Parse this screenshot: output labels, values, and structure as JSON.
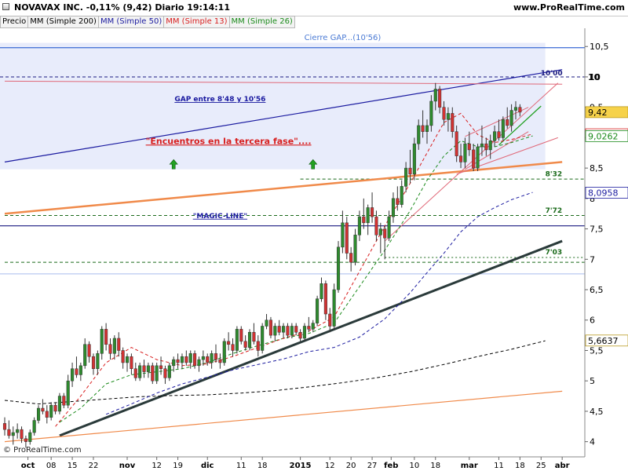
{
  "header": {
    "title": "NOVAVAX INC.   -0,11% (9,42)   Diario   19:14:11",
    "site": "www.ProRealTime.com"
  },
  "legend": [
    {
      "label": "Precio",
      "color": "#000000"
    },
    {
      "label": "MM (Simple 200)",
      "color": "#000000"
    },
    {
      "label": "MM (Simple 50)",
      "color": "#1c1ca0"
    },
    {
      "label": "MM (Simple 13)",
      "color": "#d81e1e"
    },
    {
      "label": "MM (Simple 26)",
      "color": "#1a8a1a"
    }
  ],
  "footer": {
    "copyright": "© ProRealTime.com"
  },
  "colors": {
    "up": "#2e8b2e",
    "down": "#d23232",
    "gap_zone": "#e8ecfb",
    "sma200": "#000000",
    "sma50": "#1c1ca0",
    "sma13": "#d81e1e",
    "sma26": "#1a8a1a"
  },
  "chart_data": {
    "type": "candlestick",
    "ylim": [
      3.75,
      10.8
    ],
    "yticks": [
      4,
      4.5,
      5,
      5.5,
      6,
      6.5,
      7,
      7.5,
      8,
      8.5,
      9,
      9.5,
      10,
      10.5
    ],
    "ytick_labels": [
      "4",
      "4,5",
      "5",
      "5,5",
      "6",
      "6,5",
      "7",
      "7,5",
      "8",
      "8,5",
      "9",
      "9,5",
      "10",
      "10,5"
    ],
    "x_range": [
      0,
      130
    ],
    "xticks": [
      {
        "i": 5.5,
        "label": "oct",
        "bold": true
      },
      {
        "i": 11,
        "label": "08"
      },
      {
        "i": 16,
        "label": "15"
      },
      {
        "i": 21,
        "label": "22"
      },
      {
        "i": 29,
        "label": "nov",
        "bold": true
      },
      {
        "i": 36,
        "label": "12"
      },
      {
        "i": 41,
        "label": "19"
      },
      {
        "i": 48,
        "label": "dic",
        "bold": true
      },
      {
        "i": 56,
        "label": "11"
      },
      {
        "i": 61,
        "label": "18"
      },
      {
        "i": 70,
        "label": "2015",
        "bold": true
      },
      {
        "i": 77,
        "label": "12"
      },
      {
        "i": 82,
        "label": "20"
      },
      {
        "i": 87,
        "label": "27"
      },
      {
        "i": 91.5,
        "label": "feb",
        "bold": true
      },
      {
        "i": 97,
        "label": "10"
      },
      {
        "i": 102,
        "label": "18"
      },
      {
        "i": 110,
        "label": "mar",
        "bold": true
      },
      {
        "i": 117,
        "label": "11"
      },
      {
        "i": 122,
        "label": "18"
      },
      {
        "i": 127,
        "label": "25"
      },
      {
        "i": 132,
        "label": "abr",
        "bold": true
      }
    ],
    "candles": [
      [
        4.3,
        4.4,
        4.1,
        4.2
      ],
      [
        4.2,
        4.35,
        4.05,
        4.1
      ],
      [
        4.1,
        4.25,
        3.95,
        4.15
      ],
      [
        4.15,
        4.3,
        4.05,
        4.2
      ],
      [
        4.2,
        4.25,
        3.98,
        4.05
      ],
      [
        4.05,
        4.1,
        3.9,
        4.0
      ],
      [
        4.0,
        4.2,
        3.95,
        4.15
      ],
      [
        4.15,
        4.4,
        4.1,
        4.35
      ],
      [
        4.35,
        4.6,
        4.3,
        4.55
      ],
      [
        4.55,
        4.7,
        4.45,
        4.5
      ],
      [
        4.5,
        4.6,
        4.3,
        4.4
      ],
      [
        4.4,
        4.65,
        4.35,
        4.6
      ],
      [
        4.6,
        4.65,
        4.45,
        4.5
      ],
      [
        4.5,
        4.8,
        4.45,
        4.75
      ],
      [
        4.75,
        4.8,
        4.55,
        4.6
      ],
      [
        4.6,
        5.1,
        4.55,
        5.0
      ],
      [
        5.0,
        5.3,
        4.9,
        5.2
      ],
      [
        5.2,
        5.4,
        5.05,
        5.1
      ],
      [
        5.1,
        5.3,
        5.0,
        5.25
      ],
      [
        5.25,
        5.7,
        5.2,
        5.6
      ],
      [
        5.6,
        5.65,
        5.3,
        5.4
      ],
      [
        5.4,
        5.45,
        5.1,
        5.2
      ],
      [
        5.2,
        5.5,
        5.1,
        5.45
      ],
      [
        5.45,
        5.9,
        5.35,
        5.85
      ],
      [
        5.85,
        5.95,
        5.5,
        5.6
      ],
      [
        5.6,
        5.7,
        5.35,
        5.45
      ],
      [
        5.45,
        5.75,
        5.35,
        5.7
      ],
      [
        5.7,
        5.8,
        5.4,
        5.5
      ],
      [
        5.5,
        5.55,
        5.2,
        5.3
      ],
      [
        5.3,
        5.45,
        5.15,
        5.4
      ],
      [
        5.4,
        5.45,
        5.1,
        5.2
      ],
      [
        5.2,
        5.3,
        5.0,
        5.05
      ],
      [
        5.05,
        5.3,
        5.0,
        5.25
      ],
      [
        5.25,
        5.35,
        5.05,
        5.15
      ],
      [
        5.15,
        5.3,
        5.05,
        5.25
      ],
      [
        5.25,
        5.3,
        4.95,
        5.0
      ],
      [
        5.0,
        5.3,
        4.95,
        5.25
      ],
      [
        5.25,
        5.4,
        5.1,
        5.2
      ],
      [
        5.2,
        5.25,
        4.95,
        5.05
      ],
      [
        5.05,
        5.3,
        5.0,
        5.25
      ],
      [
        5.25,
        5.4,
        5.15,
        5.35
      ],
      [
        5.35,
        5.45,
        5.2,
        5.3
      ],
      [
        5.3,
        5.45,
        5.2,
        5.4
      ],
      [
        5.4,
        5.5,
        5.25,
        5.3
      ],
      [
        5.3,
        5.5,
        5.2,
        5.45
      ],
      [
        5.45,
        5.5,
        5.2,
        5.25
      ],
      [
        5.25,
        5.4,
        5.15,
        5.35
      ],
      [
        5.35,
        5.5,
        5.25,
        5.4
      ],
      [
        5.4,
        5.45,
        5.25,
        5.3
      ],
      [
        5.3,
        5.5,
        5.2,
        5.45
      ],
      [
        5.45,
        5.6,
        5.3,
        5.35
      ],
      [
        5.35,
        5.45,
        5.2,
        5.3
      ],
      [
        5.3,
        5.7,
        5.25,
        5.65
      ],
      [
        5.65,
        5.8,
        5.5,
        5.6
      ],
      [
        5.6,
        5.7,
        5.4,
        5.5
      ],
      [
        5.5,
        5.9,
        5.45,
        5.85
      ],
      [
        5.85,
        5.9,
        5.6,
        5.65
      ],
      [
        5.65,
        5.75,
        5.5,
        5.55
      ],
      [
        5.55,
        5.85,
        5.5,
        5.8
      ],
      [
        5.8,
        5.95,
        5.6,
        5.65
      ],
      [
        5.65,
        5.75,
        5.4,
        5.5
      ],
      [
        5.5,
        5.95,
        5.45,
        5.9
      ],
      [
        5.9,
        6.1,
        5.85,
        6.0
      ],
      [
        6.0,
        6.05,
        5.7,
        5.75
      ],
      [
        5.75,
        5.95,
        5.65,
        5.9
      ],
      [
        5.9,
        6.0,
        5.75,
        5.8
      ],
      [
        5.8,
        5.95,
        5.7,
        5.9
      ],
      [
        5.9,
        5.95,
        5.7,
        5.75
      ],
      [
        5.75,
        5.95,
        5.7,
        5.9
      ],
      [
        5.9,
        5.95,
        5.75,
        5.8
      ],
      [
        5.8,
        5.85,
        5.65,
        5.7
      ],
      [
        5.7,
        5.95,
        5.65,
        5.9
      ],
      [
        5.9,
        6.05,
        5.8,
        5.85
      ],
      [
        5.85,
        6.0,
        5.8,
        5.95
      ],
      [
        5.95,
        6.4,
        5.9,
        6.35
      ],
      [
        6.35,
        6.7,
        6.3,
        6.6
      ],
      [
        6.6,
        6.65,
        6.0,
        6.1
      ],
      [
        6.1,
        6.2,
        5.8,
        5.9
      ],
      [
        5.9,
        6.6,
        5.85,
        6.5
      ],
      [
        6.5,
        7.3,
        6.45,
        7.2
      ],
      [
        7.2,
        7.8,
        7.1,
        7.6
      ],
      [
        7.6,
        7.7,
        7.0,
        7.1
      ],
      [
        7.1,
        7.2,
        6.8,
        6.95
      ],
      [
        6.95,
        7.5,
        6.9,
        7.4
      ],
      [
        7.4,
        7.8,
        7.3,
        7.7
      ],
      [
        7.7,
        8.0,
        7.5,
        7.6
      ],
      [
        7.6,
        7.9,
        7.4,
        7.85
      ],
      [
        7.85,
        8.1,
        7.6,
        7.7
      ],
      [
        7.7,
        7.8,
        7.3,
        7.4
      ],
      [
        7.4,
        7.6,
        7.1,
        7.5
      ],
      [
        7.5,
        7.55,
        7.0,
        7.35
      ],
      [
        7.35,
        7.8,
        7.3,
        7.7
      ],
      [
        7.7,
        8.1,
        7.6,
        8.0
      ],
      [
        8.0,
        8.2,
        7.8,
        7.9
      ],
      [
        7.9,
        8.3,
        7.85,
        8.2
      ],
      [
        8.2,
        8.6,
        8.1,
        8.5
      ],
      [
        8.5,
        8.8,
        8.25,
        8.4
      ],
      [
        8.4,
        9.0,
        8.3,
        8.9
      ],
      [
        8.9,
        9.3,
        8.8,
        9.2
      ],
      [
        9.2,
        9.45,
        9.0,
        9.1
      ],
      [
        9.1,
        9.3,
        8.9,
        9.2
      ],
      [
        9.2,
        9.7,
        9.1,
        9.6
      ],
      [
        9.6,
        9.9,
        9.45,
        9.8
      ],
      [
        9.8,
        9.85,
        9.4,
        9.5
      ],
      [
        9.5,
        9.6,
        9.2,
        9.3
      ],
      [
        9.3,
        9.5,
        9.1,
        9.4
      ],
      [
        9.4,
        9.5,
        9.0,
        9.1
      ],
      [
        9.1,
        9.2,
        8.6,
        8.7
      ],
      [
        8.7,
        8.9,
        8.5,
        8.6
      ],
      [
        8.6,
        9.0,
        8.5,
        8.9
      ],
      [
        8.9,
        9.1,
        8.7,
        8.8
      ],
      [
        8.8,
        8.9,
        8.45,
        8.5
      ],
      [
        8.5,
        8.9,
        8.45,
        8.85
      ],
      [
        8.85,
        9.2,
        8.7,
        8.9
      ],
      [
        8.9,
        9.0,
        8.7,
        8.8
      ],
      [
        8.8,
        9.05,
        8.65,
        8.95
      ],
      [
        8.95,
        9.2,
        8.85,
        9.1
      ],
      [
        9.1,
        9.3,
        8.95,
        9.0
      ],
      [
        9.0,
        9.35,
        8.95,
        9.3
      ],
      [
        9.3,
        9.5,
        9.15,
        9.2
      ],
      [
        9.2,
        9.55,
        9.1,
        9.45
      ],
      [
        9.45,
        9.6,
        9.3,
        9.5
      ],
      [
        9.5,
        9.55,
        9.35,
        9.42
      ]
    ],
    "sma200": [
      [
        0,
        4.68
      ],
      [
        8,
        4.62
      ],
      [
        16,
        4.66
      ],
      [
        24,
        4.7
      ],
      [
        32,
        4.74
      ],
      [
        40,
        4.76
      ],
      [
        48,
        4.77
      ],
      [
        56,
        4.8
      ],
      [
        64,
        4.84
      ],
      [
        72,
        4.9
      ],
      [
        80,
        4.97
      ],
      [
        88,
        5.05
      ],
      [
        96,
        5.15
      ],
      [
        104,
        5.27
      ],
      [
        112,
        5.4
      ],
      [
        120,
        5.52
      ],
      [
        128,
        5.66
      ]
    ],
    "sma50": [
      [
        24,
        4.45
      ],
      [
        30,
        4.62
      ],
      [
        36,
        4.8
      ],
      [
        42,
        4.95
      ],
      [
        48,
        5.06
      ],
      [
        54,
        5.18
      ],
      [
        60,
        5.27
      ],
      [
        66,
        5.36
      ],
      [
        72,
        5.48
      ],
      [
        78,
        5.55
      ],
      [
        84,
        5.72
      ],
      [
        90,
        6.02
      ],
      [
        96,
        6.45
      ],
      [
        100,
        6.78
      ],
      [
        104,
        7.1
      ],
      [
        108,
        7.45
      ],
      [
        112,
        7.7
      ],
      [
        116,
        7.85
      ],
      [
        120,
        7.98
      ],
      [
        125,
        8.1
      ]
    ],
    "sma26": [
      [
        13,
        4.32
      ],
      [
        18,
        4.55
      ],
      [
        24,
        4.95
      ],
      [
        30,
        5.1
      ],
      [
        36,
        5.15
      ],
      [
        42,
        5.2
      ],
      [
        48,
        5.3
      ],
      [
        54,
        5.45
      ],
      [
        60,
        5.58
      ],
      [
        66,
        5.7
      ],
      [
        72,
        5.78
      ],
      [
        78,
        5.95
      ],
      [
        84,
        6.55
      ],
      [
        90,
        7.15
      ],
      [
        96,
        7.8
      ],
      [
        100,
        8.3
      ],
      [
        104,
        8.7
      ],
      [
        108,
        8.95
      ],
      [
        112,
        8.85
      ],
      [
        116,
        8.85
      ],
      [
        120,
        8.92
      ],
      [
        125,
        9.03
      ]
    ],
    "sma13": [
      [
        12,
        4.25
      ],
      [
        18,
        4.75
      ],
      [
        24,
        5.3
      ],
      [
        30,
        5.55
      ],
      [
        36,
        5.35
      ],
      [
        42,
        5.25
      ],
      [
        48,
        5.28
      ],
      [
        54,
        5.4
      ],
      [
        60,
        5.55
      ],
      [
        66,
        5.7
      ],
      [
        72,
        5.82
      ],
      [
        78,
        6.05
      ],
      [
        84,
        6.8
      ],
      [
        90,
        7.55
      ],
      [
        96,
        8.25
      ],
      [
        100,
        8.75
      ],
      [
        104,
        9.25
      ],
      [
        108,
        9.4
      ],
      [
        112,
        9.05
      ],
      [
        116,
        8.92
      ],
      [
        120,
        8.97
      ],
      [
        125,
        9.06
      ]
    ],
    "gap_zone": {
      "y0": 8.48,
      "y1": 10.56,
      "x0": 0,
      "x1": 128
    },
    "hlines": [
      {
        "y": 10.48,
        "color": "#3a6ad4",
        "width": 1.3,
        "dash": ""
      },
      {
        "y": 10.0,
        "color": "#1a1a80",
        "width": 1,
        "dash": "4,3"
      },
      {
        "y": 8.32,
        "color": "#1a6a1a",
        "width": 1,
        "dash": "4,3",
        "x0": 70
      },
      {
        "y": 7.72,
        "color": "#1a6a1a",
        "width": 1,
        "dash": "4,3",
        "x0": 0
      },
      {
        "y": 6.95,
        "color": "#1a6a1a",
        "width": 1,
        "dash": "4,3",
        "x0": 0
      },
      {
        "y": 7.03,
        "color": "#1a6a1a",
        "width": 1,
        "dash": "2,3",
        "x0": 90
      },
      {
        "y": 7.55,
        "color": "#1a1a80",
        "width": 1.2,
        "dash": ""
      },
      {
        "y": 6.76,
        "color": "#b8c8f0",
        "width": 1.2,
        "dash": ""
      }
    ],
    "trendlines": [
      {
        "x1": 0,
        "y1": 8.6,
        "x2": 132,
        "y2": 10.12,
        "color": "#1a1aa0",
        "width": 1.2
      },
      {
        "x1": 0,
        "y1": 9.93,
        "x2": 132,
        "y2": 9.88,
        "color": "#e06878",
        "width": 1
      },
      {
        "x1": 0,
        "y1": 7.75,
        "x2": 132,
        "y2": 8.6,
        "color": "#f08a4a",
        "width": 2.5
      },
      {
        "x1": 13,
        "y1": 4.1,
        "x2": 132,
        "y2": 7.3,
        "color": "#2a3a3a",
        "width": 3
      },
      {
        "x1": 0,
        "y1": 4.0,
        "x2": 132,
        "y2": 4.83,
        "color": "#f08a4a",
        "width": 1.2
      },
      {
        "x1": 90,
        "y1": 7.3,
        "x2": 131,
        "y2": 9.9,
        "color": "#e06878",
        "width": 1
      },
      {
        "x1": 107,
        "y1": 8.4,
        "x2": 131,
        "y2": 9.0,
        "color": "#e06878",
        "width": 1
      },
      {
        "x1": 109,
        "y1": 8.48,
        "x2": 124,
        "y2": 9.1,
        "color": "#e06878",
        "width": 1
      },
      {
        "x1": 109,
        "y1": 9.02,
        "x2": 124,
        "y2": 9.5,
        "color": "#e06878",
        "width": 1
      },
      {
        "x1": 117,
        "y1": 8.88,
        "x2": 127,
        "y2": 9.52,
        "color": "#22a022",
        "width": 1.3
      }
    ],
    "annotations": [
      {
        "text": "Cierre GAP...(10'56)",
        "x": 80,
        "y": 10.66,
        "color": "#4a7ad4",
        "bold": false,
        "size": 10
      },
      {
        "text": "10'00",
        "x": 129.5,
        "y": 10.08,
        "color": "#1a1a80",
        "bold": true,
        "size": 9
      },
      {
        "text": "GAP entre 8'48 y 10'56",
        "x": 51,
        "y": 9.65,
        "color": "#1a1aa0",
        "bold": true,
        "size": 9,
        "underline": true
      },
      {
        "text": "\"Encuentros en la tercera fase\"....",
        "x": 53,
        "y": 8.95,
        "color": "#d81e1e",
        "bold": true,
        "size": 11,
        "underline": true
      },
      {
        "text": "8'32",
        "x": 130,
        "y": 8.42,
        "color": "#1a6a1a",
        "bold": true,
        "size": 9
      },
      {
        "text": "\"MAGIC-LINE\"",
        "x": 51,
        "y": 7.73,
        "color": "#1a1aa0",
        "bold": true,
        "size": 9,
        "underline": true
      },
      {
        "text": "7'72",
        "x": 130,
        "y": 7.82,
        "color": "#1a6a1a",
        "bold": true,
        "size": 9
      },
      {
        "text": "7'03",
        "x": 130,
        "y": 7.13,
        "color": "#1a6a1a",
        "bold": true,
        "size": 9
      }
    ],
    "arrows": [
      {
        "x": 40,
        "y": 8.55,
        "color": "#22a022"
      },
      {
        "x": 73,
        "y": 8.55,
        "color": "#22a022"
      }
    ],
    "price_labels": [
      {
        "value": 10.0,
        "text": "10",
        "bg": "",
        "color": "#000000",
        "bold": true
      },
      {
        "value": 9.42,
        "text": "9,42",
        "bg": "#f6d24a",
        "color": "#000000",
        "bold": false
      },
      {
        "value": 9.0562,
        "text": "9,0562",
        "bg": "#ffffff",
        "color": "#d81e1e",
        "bold": false
      },
      {
        "value": 9.0262,
        "text": "9,0262",
        "bg": "#ffffff",
        "color": "#1a8a1a",
        "bold": false
      },
      {
        "value": 8.0958,
        "text": "8,0958",
        "bg": "#ffffff",
        "color": "#1c1ca0",
        "bold": false
      },
      {
        "value": 5.6637,
        "text": "5,6637",
        "bg": "#ffffff",
        "color": "#000000",
        "bold": false
      }
    ]
  }
}
